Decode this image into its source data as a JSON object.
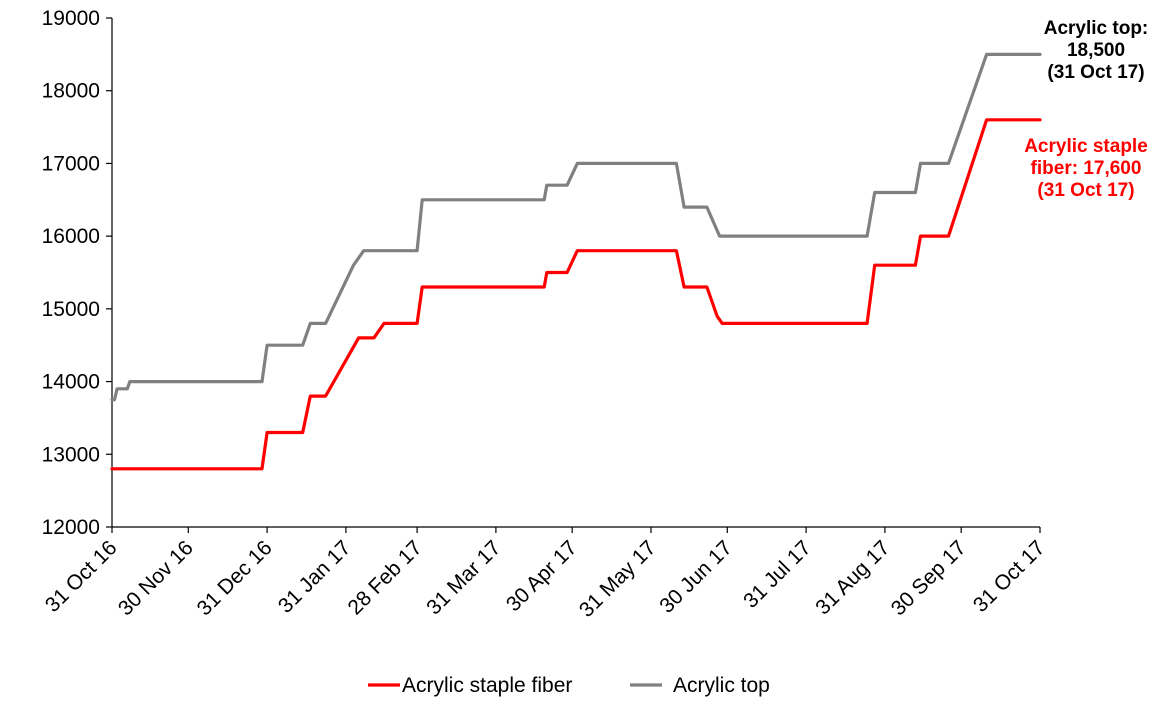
{
  "chart_data": {
    "type": "line",
    "title": "",
    "xlabel": "",
    "ylabel": "",
    "ylim": [
      12000,
      19000
    ],
    "yticks": [
      "12000",
      "13000",
      "14000",
      "15000",
      "16000",
      "17000",
      "18000",
      "19000"
    ],
    "xlim": [
      "2016-10-31",
      "2017-10-31"
    ],
    "xticks": [
      {
        "date": "2016-10-31",
        "label": "31 Oct 16"
      },
      {
        "date": "2016-11-30",
        "label": "30 Nov 16"
      },
      {
        "date": "2016-12-31",
        "label": "31 Dec 16"
      },
      {
        "date": "2017-01-31",
        "label": "31 Jan 17"
      },
      {
        "date": "2017-02-28",
        "label": "28 Feb 17"
      },
      {
        "date": "2017-03-31",
        "label": "31 Mar 17"
      },
      {
        "date": "2017-04-30",
        "label": "30 Apr 17"
      },
      {
        "date": "2017-05-31",
        "label": "31 May 17"
      },
      {
        "date": "2017-06-30",
        "label": "30 Jun 17"
      },
      {
        "date": "2017-07-31",
        "label": "31 Jul 17"
      },
      {
        "date": "2017-08-31",
        "label": "31 Aug 17"
      },
      {
        "date": "2017-09-30",
        "label": "30 Sep 17"
      },
      {
        "date": "2017-10-31",
        "label": "31 Oct 17"
      }
    ],
    "grid": false,
    "legend": "bottom",
    "colors": {
      "staple": "#ff0000",
      "top": "#808080"
    },
    "series": [
      {
        "name": "Acrylic staple fiber",
        "color": "#ff0000",
        "points": [
          [
            "2016-10-31",
            12800
          ],
          [
            "2016-12-29",
            12800
          ],
          [
            "2016-12-31",
            13300
          ],
          [
            "2017-01-14",
            13300
          ],
          [
            "2017-01-17",
            13800
          ],
          [
            "2017-01-23",
            13800
          ],
          [
            "2017-02-05",
            14600
          ],
          [
            "2017-02-11",
            14600
          ],
          [
            "2017-02-15",
            14800
          ],
          [
            "2017-02-28",
            14800
          ],
          [
            "2017-03-02",
            15300
          ],
          [
            "2017-04-19",
            15300
          ],
          [
            "2017-04-20",
            15500
          ],
          [
            "2017-04-28",
            15500
          ],
          [
            "2017-05-02",
            15800
          ],
          [
            "2017-06-10",
            15800
          ],
          [
            "2017-06-13",
            15300
          ],
          [
            "2017-06-22",
            15300
          ],
          [
            "2017-06-26",
            14900
          ],
          [
            "2017-06-28",
            14800
          ],
          [
            "2017-08-24",
            14800
          ],
          [
            "2017-08-27",
            15600
          ],
          [
            "2017-09-12",
            15600
          ],
          [
            "2017-09-14",
            16000
          ],
          [
            "2017-09-25",
            16000
          ],
          [
            "2017-10-10",
            17600
          ],
          [
            "2017-10-31",
            17600
          ]
        ]
      },
      {
        "name": "Acrylic top",
        "color": "#808080",
        "points": [
          [
            "2016-10-31",
            13750
          ],
          [
            "2016-11-01",
            13750
          ],
          [
            "2016-11-02",
            13900
          ],
          [
            "2016-11-06",
            13900
          ],
          [
            "2016-11-07",
            14000
          ],
          [
            "2016-12-29",
            14000
          ],
          [
            "2016-12-31",
            14500
          ],
          [
            "2017-01-14",
            14500
          ],
          [
            "2017-01-17",
            14800
          ],
          [
            "2017-01-23",
            14800
          ],
          [
            "2017-02-03",
            15600
          ],
          [
            "2017-02-07",
            15800
          ],
          [
            "2017-02-28",
            15800
          ],
          [
            "2017-03-02",
            16500
          ],
          [
            "2017-04-19",
            16500
          ],
          [
            "2017-04-20",
            16700
          ],
          [
            "2017-04-28",
            16700
          ],
          [
            "2017-05-02",
            17000
          ],
          [
            "2017-06-10",
            17000
          ],
          [
            "2017-06-13",
            16400
          ],
          [
            "2017-06-22",
            16400
          ],
          [
            "2017-06-27",
            16000
          ],
          [
            "2017-08-24",
            16000
          ],
          [
            "2017-08-27",
            16600
          ],
          [
            "2017-09-12",
            16600
          ],
          [
            "2017-09-14",
            17000
          ],
          [
            "2017-09-25",
            17000
          ],
          [
            "2017-10-10",
            18500
          ],
          [
            "2017-10-31",
            18500
          ]
        ]
      }
    ],
    "annotations": [
      {
        "id": "top",
        "color": "#000000",
        "lines": [
          "Acrylic top:",
          "18,500",
          "(31 Oct 17)"
        ]
      },
      {
        "id": "staple",
        "color": "#ff0000",
        "lines": [
          "Acrylic staple",
          "fiber: 17,600",
          "(31 Oct 17)"
        ]
      }
    ]
  }
}
